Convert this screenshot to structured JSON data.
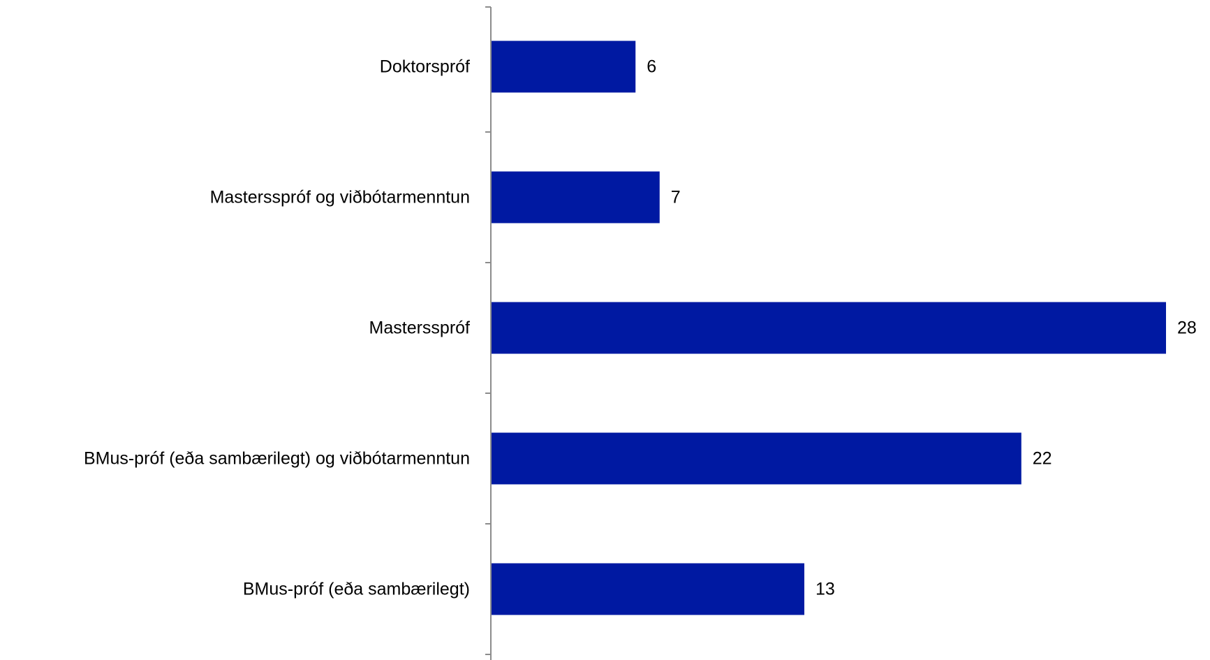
{
  "chart_data": {
    "type": "bar",
    "orientation": "horizontal",
    "categories": [
      "Doktorspróf",
      "Mastersspróf og viðbótarmenntun",
      "Mastersspróf",
      "BMus-próf (eða sambærilegt) og viðbótarmenntun",
      "BMus-próf (eða sambærilegt)"
    ],
    "values": [
      6,
      7,
      28,
      22,
      13
    ],
    "title": "",
    "xlabel": "",
    "ylabel": "",
    "xlim": [
      0,
      28
    ],
    "grid": false,
    "legend": "none",
    "data_labels": true,
    "colors": {
      "bar": "#0019a2",
      "axis": "#8c8c8c",
      "text": "#000000",
      "background": "#ffffff"
    }
  }
}
